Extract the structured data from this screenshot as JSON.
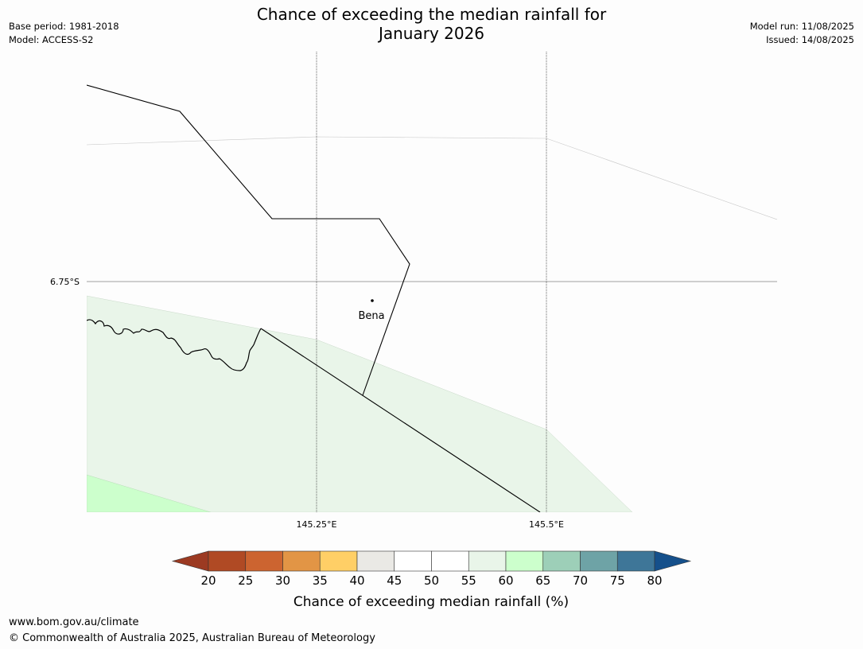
{
  "header": {
    "title_line1": "Chance of exceeding the median rainfall for",
    "title_line2": "January 2026",
    "base_period": "Base period: 1981-2018",
    "model": "Model: ACCESS-S2",
    "model_run": "Model run: 11/08/2025",
    "issued": "Issued: 14/08/2025"
  },
  "map": {
    "place_label": "Bena",
    "latitude_labels": [
      "6.75°S"
    ],
    "longitude_labels": [
      "145.25°E",
      "145.5°E"
    ],
    "category_colors": {
      "55-60": "#e9f5e9",
      "60-65": "#ccffcc"
    }
  },
  "colorbar": {
    "label": "Chance of exceeding median rainfall (%)",
    "ticks": [
      "20",
      "25",
      "30",
      "35",
      "40",
      "45",
      "50",
      "55",
      "60",
      "65",
      "70",
      "75",
      "80"
    ],
    "colors": [
      "#b04a24",
      "#cc6430",
      "#e29545",
      "#ffcf66",
      "#eae9e5",
      "#ffffff",
      "#ffffff",
      "#e9f5e9",
      "#ccffcc",
      "#9dcfb8",
      "#6ea3a6",
      "#3e7698"
    ],
    "under_color": "#9c3a22",
    "over_color": "#15508b"
  },
  "footer": {
    "url": "www.bom.gov.au/climate",
    "copyright": "© Commonwealth of Australia 2025, Australian Bureau of Meteorology"
  }
}
